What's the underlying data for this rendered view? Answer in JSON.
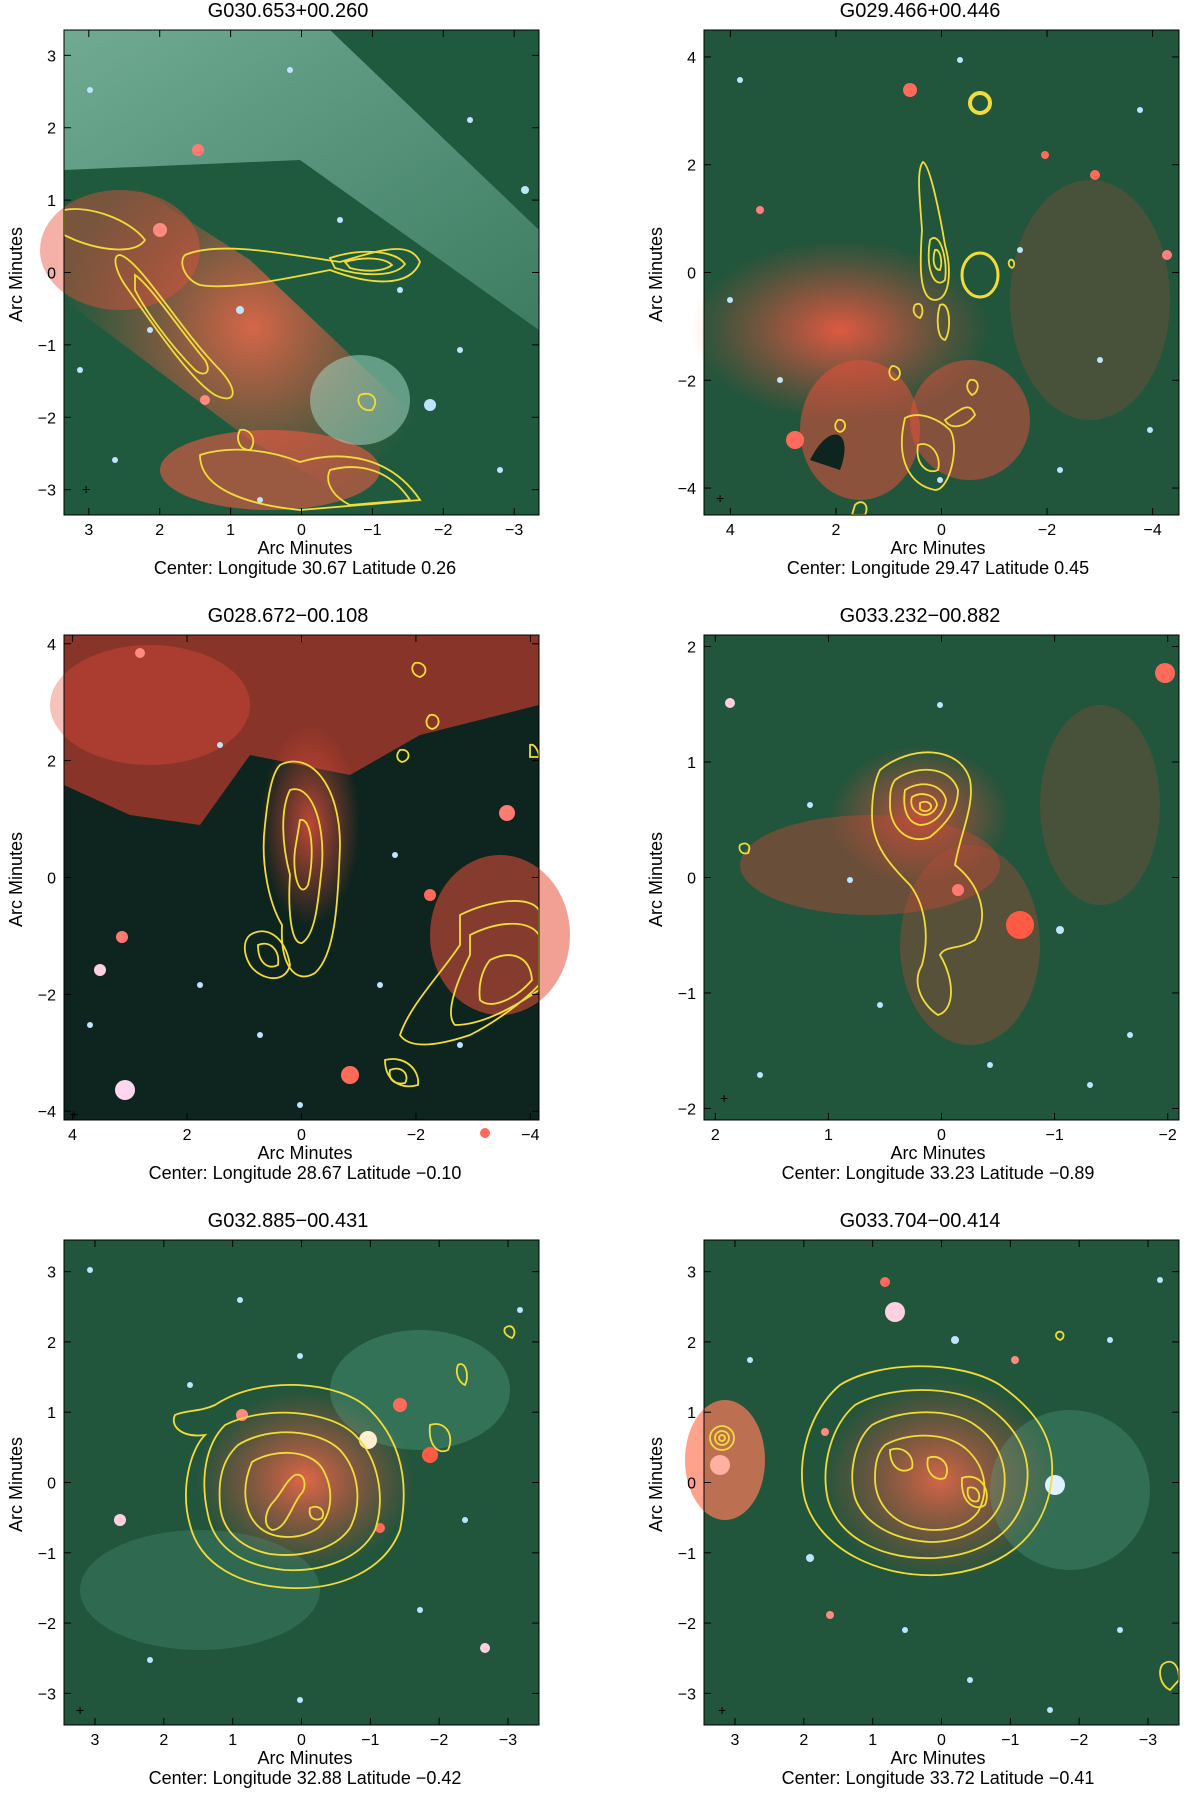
{
  "figure": {
    "xlabel": "Arc Minutes",
    "ylabel": "Arc Minutes",
    "center_prefix": "Center:",
    "panels": [
      {
        "title": "G030.653+00.260",
        "center_text": "Longitude 30.67 Latitude 0.26",
        "xticks": [
          "3",
          "2",
          "1",
          "0",
          "−1",
          "−2",
          "−3"
        ],
        "yticks": [
          "3",
          "2",
          "1",
          "0",
          "−1",
          "−2",
          "−3"
        ],
        "tick_range": 3.35
      },
      {
        "title": "G029.466+00.446",
        "center_text": "Longitude 29.47 Latitude 0.45",
        "xticks": [
          "4",
          "2",
          "0",
          "−2",
          "−4"
        ],
        "yticks": [
          "4",
          "2",
          "0",
          "−2",
          "−4"
        ],
        "tick_range": 4.5
      },
      {
        "title": "G028.672−00.108",
        "center_text": "Longitude 28.67 Latitude −0.10",
        "xticks": [
          "4",
          "2",
          "0",
          "−2",
          "−4"
        ],
        "yticks": [
          "4",
          "2",
          "0",
          "−2",
          "−4"
        ],
        "tick_range": 4.15
      },
      {
        "title": "G033.232−00.882",
        "center_text": "Longitude 33.23 Latitude −0.89",
        "xticks": [
          "2",
          "1",
          "0",
          "−1",
          "−2"
        ],
        "yticks": [
          "2",
          "1",
          "0",
          "−1",
          "−2"
        ],
        "tick_range": 2.1
      },
      {
        "title": "G032.885−00.431",
        "center_text": "Longitude 32.88 Latitude −0.42",
        "xticks": [
          "3",
          "2",
          "1",
          "0",
          "−1",
          "−2",
          "−3"
        ],
        "yticks": [
          "3",
          "2",
          "1",
          "0",
          "−1",
          "−2",
          "−3"
        ],
        "tick_range": 3.45
      },
      {
        "title": "G033.704−00.414",
        "center_text": "Longitude 33.72 Latitude −0.41",
        "xticks": [
          "3",
          "2",
          "1",
          "0",
          "−1",
          "−2",
          "−3"
        ],
        "yticks": [
          "3",
          "2",
          "1",
          "0",
          "−1",
          "−2",
          "−3"
        ],
        "tick_range": 3.45
      }
    ]
  },
  "colors": {
    "contour": "#f2dc3a",
    "green_background": "#1f5a3e",
    "dark_background": "#0e241e",
    "red_nebula": "#e8503c",
    "cyan_nebula": "#8fd6c0",
    "star": "#bfe4ff",
    "marker": "#e01010"
  }
}
